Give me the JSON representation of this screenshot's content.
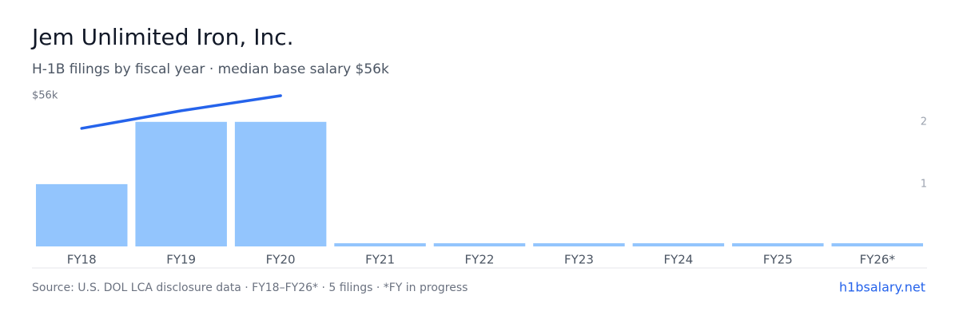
{
  "chart_data": {
    "type": "bar",
    "title": "Jem Unlimited Iron, Inc.",
    "subtitle": "H-1B filings by fiscal year · median base salary $56k",
    "categories": [
      "FY18",
      "FY19",
      "FY20",
      "FY21",
      "FY22",
      "FY23",
      "FY24",
      "FY25",
      "FY26*"
    ],
    "series": [
      {
        "type": "bar",
        "axis": "y2",
        "color": "#93c5fd",
        "values": [
          1,
          2,
          2,
          0,
          0,
          0,
          0,
          0,
          0
        ]
      },
      {
        "type": "line",
        "color": "#2563eb",
        "values": [
          53400,
          54800,
          56000,
          null,
          null,
          null,
          null,
          null,
          null
        ]
      }
    ],
    "ylim": [
      44000,
      56000
    ],
    "yticks": [
      {
        "value": 56000,
        "label": "$56k"
      }
    ],
    "y2lim": [
      0,
      2.42
    ],
    "y2ticks": [
      1,
      2
    ],
    "source": "Source: U.S. DOL LCA disclosure data · FY18–FY26* · 5 filings · *FY in progress",
    "site": "h1bsalary.net"
  }
}
